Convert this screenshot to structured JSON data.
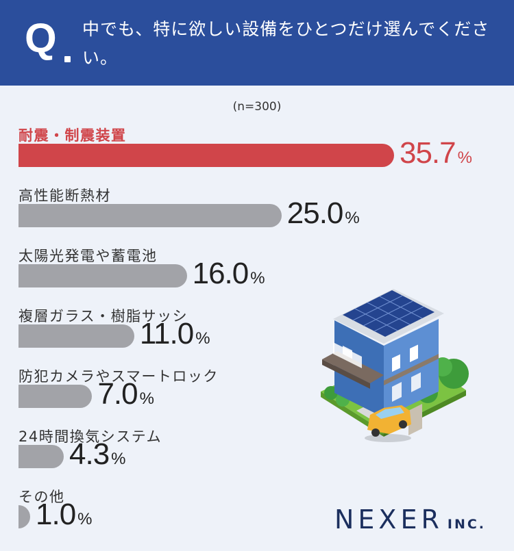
{
  "header": {
    "q_mark": "Q",
    "question": "中でも、特に欲しい設備をひとつだけ選んでください。"
  },
  "sample_note": "(n=300)",
  "chart_data": {
    "type": "bar",
    "orientation": "horizontal",
    "title": "中でも、特に欲しい設備をひとつだけ選んでください。",
    "unit": "%",
    "categories": [
      "耐震・制震装置",
      "高性能断熱材",
      "太陽光発電や蓄電池",
      "複層ガラス・樹脂サッシ",
      "防犯カメラやスマートロック",
      "24時間換気システム",
      "その他"
    ],
    "values": [
      35.7,
      25.0,
      16.0,
      11.0,
      7.0,
      4.3,
      1.0
    ],
    "value_labels": [
      "35.7",
      "25.0",
      "16.0",
      "11.0",
      "7.0",
      "4.3",
      "1.0"
    ],
    "highlight_index": 0,
    "colors": {
      "highlight": "#d0454a",
      "default": "#a2a3a8"
    },
    "grid": false,
    "legend": "none"
  },
  "logo": {
    "main": "NEXER",
    "suffix": "INC."
  },
  "colors": {
    "header_bg": "#2b4e9c",
    "page_bg": "#eef2f9",
    "brand": "#1c2f5e"
  },
  "illustration": {
    "icon": "house-with-solar-panels-and-car-icon"
  }
}
